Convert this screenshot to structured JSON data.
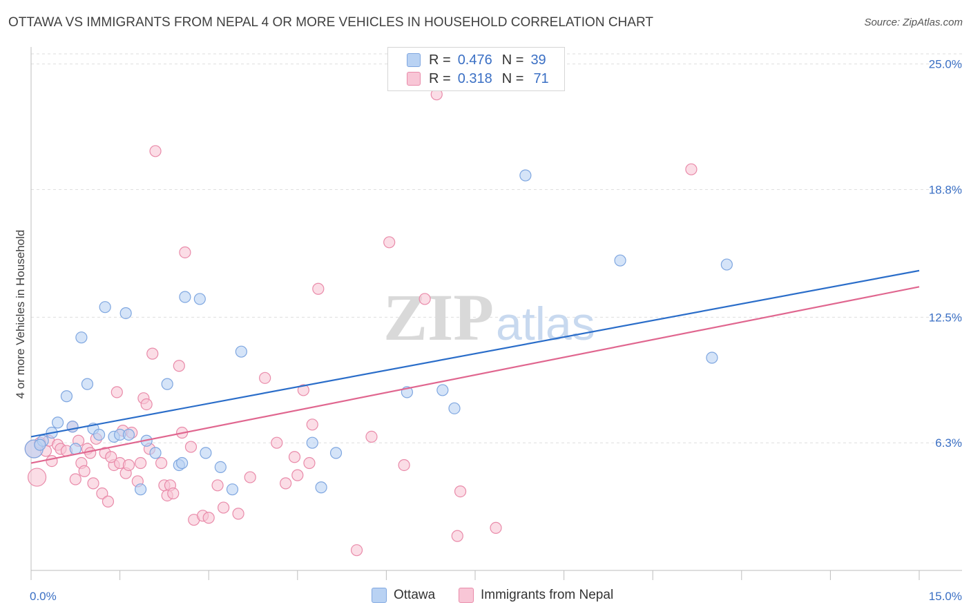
{
  "title": "OTTAWA VS IMMIGRANTS FROM NEPAL 4 OR MORE VEHICLES IN HOUSEHOLD CORRELATION CHART",
  "source": "Source: ZipAtlas.com",
  "watermark": {
    "zip": "ZIP",
    "atlas": "atlas"
  },
  "legend": {
    "r_label": "R =",
    "n_label": "N =",
    "rows": [
      {
        "r": "0.476",
        "n": "39"
      },
      {
        "r": "0.318",
        "n": "71"
      }
    ]
  },
  "chart_data": {
    "type": "scatter",
    "title": "OTTAWA VS IMMIGRANTS FROM NEPAL 4 OR MORE VEHICLES IN HOUSEHOLD CORRELATION CHART",
    "xlabel": "",
    "ylabel": "4 or more Vehicles in Household",
    "xlim": [
      0,
      15
    ],
    "ylim": [
      0,
      25.5
    ],
    "x_tick_labels": [
      {
        "value": 0,
        "label": "0.0%"
      },
      {
        "value": 15,
        "label": "15.0%"
      }
    ],
    "y_tick_labels": [
      {
        "value": 25.0,
        "label": "25.0%"
      },
      {
        "value": 18.8,
        "label": "18.8%"
      },
      {
        "value": 12.5,
        "label": "12.5%"
      },
      {
        "value": 6.3,
        "label": "6.3%"
      }
    ],
    "grid": true,
    "series": [
      {
        "name": "Ottawa",
        "color": "#7ea6e0",
        "fill": "#b9d2f3",
        "line_color": "#2a6dc9",
        "trend": {
          "x": [
            0,
            15
          ],
          "y": [
            6.6,
            14.8
          ]
        },
        "points": [
          [
            0.05,
            6.0
          ],
          [
            0.2,
            6.4
          ],
          [
            0.35,
            6.8
          ],
          [
            0.45,
            7.3
          ],
          [
            0.6,
            8.6
          ],
          [
            0.7,
            7.1
          ],
          [
            0.75,
            6.0
          ],
          [
            0.85,
            11.5
          ],
          [
            0.95,
            9.2
          ],
          [
            1.05,
            7.0
          ],
          [
            1.15,
            6.7
          ],
          [
            1.25,
            13.0
          ],
          [
            1.4,
            6.6
          ],
          [
            1.5,
            6.7
          ],
          [
            1.6,
            12.7
          ],
          [
            1.65,
            6.7
          ],
          [
            1.85,
            4.0
          ],
          [
            1.95,
            6.4
          ],
          [
            2.1,
            5.8
          ],
          [
            2.3,
            9.2
          ],
          [
            2.5,
            5.2
          ],
          [
            2.55,
            5.3
          ],
          [
            2.6,
            13.5
          ],
          [
            2.85,
            13.4
          ],
          [
            2.95,
            5.8
          ],
          [
            3.2,
            5.1
          ],
          [
            3.4,
            4.0
          ],
          [
            3.55,
            10.8
          ],
          [
            4.75,
            6.3
          ],
          [
            4.9,
            4.1
          ],
          [
            5.15,
            5.8
          ],
          [
            6.35,
            8.8
          ],
          [
            6.95,
            8.9
          ],
          [
            7.15,
            8.0
          ],
          [
            8.35,
            19.5
          ],
          [
            9.95,
            15.3
          ],
          [
            11.5,
            10.5
          ],
          [
            11.75,
            15.1
          ],
          [
            0.15,
            6.2
          ]
        ]
      },
      {
        "name": "Immigrants from Nepal",
        "color": "#e98aa9",
        "fill": "#f8c6d6",
        "line_color": "#e0668f",
        "trend": {
          "x": [
            0,
            15
          ],
          "y": [
            5.3,
            14.0
          ]
        },
        "points": [
          [
            0.05,
            6.0
          ],
          [
            0.1,
            4.6
          ],
          [
            0.3,
            6.4
          ],
          [
            0.35,
            5.4
          ],
          [
            0.45,
            6.2
          ],
          [
            0.5,
            6.0
          ],
          [
            0.6,
            5.9
          ],
          [
            0.7,
            7.1
          ],
          [
            0.75,
            4.5
          ],
          [
            0.8,
            6.4
          ],
          [
            0.85,
            5.3
          ],
          [
            0.9,
            4.9
          ],
          [
            0.95,
            6.0
          ],
          [
            1.0,
            5.8
          ],
          [
            1.05,
            4.3
          ],
          [
            1.2,
            3.8
          ],
          [
            1.25,
            5.8
          ],
          [
            1.3,
            3.4
          ],
          [
            1.4,
            5.2
          ],
          [
            1.45,
            8.8
          ],
          [
            1.5,
            5.3
          ],
          [
            1.55,
            6.9
          ],
          [
            1.6,
            4.8
          ],
          [
            1.65,
            5.2
          ],
          [
            1.7,
            6.8
          ],
          [
            1.8,
            4.4
          ],
          [
            1.85,
            5.3
          ],
          [
            1.9,
            8.5
          ],
          [
            1.95,
            8.2
          ],
          [
            2.0,
            6.0
          ],
          [
            2.05,
            10.7
          ],
          [
            2.1,
            20.7
          ],
          [
            2.2,
            5.3
          ],
          [
            2.25,
            4.2
          ],
          [
            2.3,
            3.7
          ],
          [
            2.35,
            4.2
          ],
          [
            2.4,
            3.8
          ],
          [
            2.5,
            10.1
          ],
          [
            2.55,
            6.8
          ],
          [
            2.6,
            15.7
          ],
          [
            2.7,
            6.1
          ],
          [
            2.75,
            2.5
          ],
          [
            2.9,
            2.7
          ],
          [
            3.0,
            2.6
          ],
          [
            3.15,
            4.2
          ],
          [
            3.25,
            3.1
          ],
          [
            3.7,
            4.6
          ],
          [
            3.95,
            9.5
          ],
          [
            4.15,
            6.3
          ],
          [
            4.3,
            4.3
          ],
          [
            4.5,
            4.7
          ],
          [
            4.6,
            8.9
          ],
          [
            4.7,
            5.3
          ],
          [
            4.75,
            7.2
          ],
          [
            4.85,
            13.9
          ],
          [
            5.5,
            1.0
          ],
          [
            5.75,
            6.6
          ],
          [
            6.05,
            16.2
          ],
          [
            6.3,
            5.2
          ],
          [
            6.65,
            13.4
          ],
          [
            6.85,
            23.5
          ],
          [
            7.2,
            1.7
          ],
          [
            7.25,
            3.9
          ],
          [
            7.85,
            2.1
          ],
          [
            11.15,
            19.8
          ],
          [
            0.15,
            6.3
          ],
          [
            0.25,
            5.9
          ],
          [
            1.1,
            6.5
          ],
          [
            1.35,
            5.6
          ],
          [
            3.5,
            2.8
          ],
          [
            4.45,
            5.6
          ]
        ]
      }
    ]
  }
}
